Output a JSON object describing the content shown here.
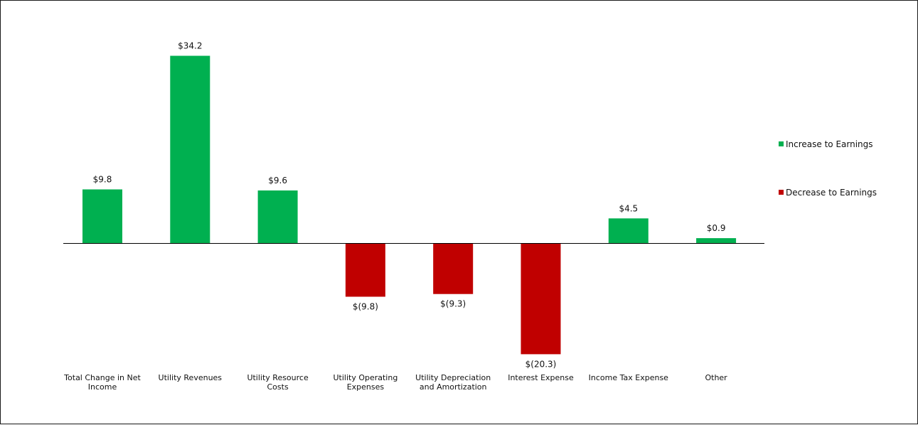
{
  "chart_data": {
    "type": "bar",
    "categories": [
      [
        "Total Change in Net",
        "Income"
      ],
      [
        "Utility Revenues"
      ],
      [
        "Utility Resource",
        "Costs"
      ],
      [
        "Utility Operating",
        "Expenses"
      ],
      [
        "Utility Depreciation",
        "and Amortization"
      ],
      [
        "Interest Expense"
      ],
      [
        "Income Tax Expense"
      ],
      [
        "Other"
      ]
    ],
    "values": [
      9.8,
      34.2,
      9.6,
      -9.8,
      -9.3,
      -20.3,
      4.5,
      0.9
    ],
    "data_labels": [
      "$9.8",
      "$34.2",
      "$9.6",
      "$(9.8)",
      "$(9.3)",
      "$(20.3)",
      "$4.5",
      "$0.9"
    ],
    "colors": {
      "increase": "#00b050",
      "decrease": "#c00000",
      "axis": "#000000"
    },
    "legend": {
      "placement": "right",
      "entries": [
        {
          "label": "Increase to Earnings",
          "color": "#00b050"
        },
        {
          "label": "Decrease to Earnings",
          "color": "#c00000"
        }
      ]
    },
    "ylim": [
      -20.3,
      34.2
    ],
    "grid": false,
    "title": "",
    "xlabel": "",
    "ylabel": ""
  }
}
